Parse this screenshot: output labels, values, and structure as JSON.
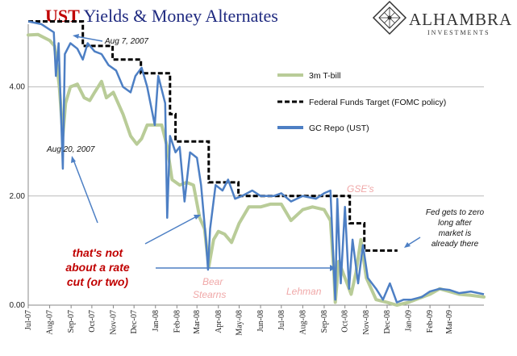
{
  "title": {
    "part1": "UST",
    "part2": " Yields & Money Alternates",
    "part1_color": "#c00000",
    "part2_color": "#1f2a80"
  },
  "logo": {
    "name": "ALHAMBRA",
    "sub": "INVESTMENTS",
    "icon": "alhambra-diamond-logo-icon"
  },
  "colors": {
    "tbill": "#b9cc98",
    "repo": "#4d7fc4",
    "fedfunds": "#000000",
    "arrow": "#4d7fc4",
    "grid": "#bbbbbb"
  },
  "chart_data": {
    "type": "line",
    "ylim": [
      0,
      5.0
    ],
    "yticks": [
      "0.00",
      "2.00",
      "4.00"
    ],
    "ytick_values": [
      0,
      2,
      4
    ],
    "x_range": [
      "2007-07-01",
      "2009-04-20"
    ],
    "xticks": [
      {
        "date": "2007-07-01",
        "label": "Jul-07"
      },
      {
        "date": "2007-08-01",
        "label": "Aug-07"
      },
      {
        "date": "2007-09-01",
        "label": "Sep-07"
      },
      {
        "date": "2007-10-01",
        "label": "Oct-07"
      },
      {
        "date": "2007-11-01",
        "label": "Nov-07"
      },
      {
        "date": "2007-12-01",
        "label": "Dec-07"
      },
      {
        "date": "2008-01-01",
        "label": "Jan-08"
      },
      {
        "date": "2008-02-01",
        "label": "Feb-08"
      },
      {
        "date": "2008-03-01",
        "label": "Mar-08"
      },
      {
        "date": "2008-04-01",
        "label": "Apr-08"
      },
      {
        "date": "2008-05-01",
        "label": "May-08"
      },
      {
        "date": "2008-06-01",
        "label": "Jun-08"
      },
      {
        "date": "2008-07-01",
        "label": "Jul-08"
      },
      {
        "date": "2008-08-01",
        "label": "Aug-08"
      },
      {
        "date": "2008-09-01",
        "label": "Sep-08"
      },
      {
        "date": "2008-10-01",
        "label": "Oct-08"
      },
      {
        "date": "2008-11-01",
        "label": "Nov-08"
      },
      {
        "date": "2008-12-01",
        "label": "Dec-08"
      },
      {
        "date": "2009-01-01",
        "label": "Jan-09"
      },
      {
        "date": "2009-02-01",
        "label": "Feb-09"
      },
      {
        "date": "2009-03-01",
        "label": "Mar-09"
      }
    ],
    "legend": [
      {
        "key": "tbill",
        "label": "3m T-bill"
      },
      {
        "key": "fedfunds",
        "label": "Federal Funds Target (FOMC policy)"
      },
      {
        "key": "repo",
        "label": "GC Repo (UST)"
      }
    ],
    "series": [
      {
        "key": "tbill",
        "name": "3m T-bill",
        "points": [
          [
            "2007-07-01",
            4.95
          ],
          [
            "2007-07-15",
            4.96
          ],
          [
            "2007-08-01",
            4.85
          ],
          [
            "2007-08-08",
            4.75
          ],
          [
            "2007-08-15",
            4.0
          ],
          [
            "2007-08-20",
            3.1
          ],
          [
            "2007-08-24",
            3.7
          ],
          [
            "2007-08-31",
            4.0
          ],
          [
            "2007-09-10",
            4.05
          ],
          [
            "2007-09-20",
            3.8
          ],
          [
            "2007-09-28",
            3.75
          ],
          [
            "2007-10-05",
            3.9
          ],
          [
            "2007-10-15",
            4.1
          ],
          [
            "2007-10-22",
            3.8
          ],
          [
            "2007-11-01",
            3.9
          ],
          [
            "2007-11-15",
            3.5
          ],
          [
            "2007-11-26",
            3.1
          ],
          [
            "2007-12-05",
            2.95
          ],
          [
            "2007-12-12",
            3.05
          ],
          [
            "2007-12-20",
            3.3
          ],
          [
            "2007-12-31",
            3.3
          ],
          [
            "2008-01-10",
            3.3
          ],
          [
            "2008-01-18",
            2.9
          ],
          [
            "2008-01-25",
            2.3
          ],
          [
            "2008-02-05",
            2.2
          ],
          [
            "2008-02-15",
            2.25
          ],
          [
            "2008-02-25",
            2.2
          ],
          [
            "2008-03-05",
            1.6
          ],
          [
            "2008-03-12",
            1.4
          ],
          [
            "2008-03-18",
            0.7
          ],
          [
            "2008-03-25",
            1.2
          ],
          [
            "2008-04-01",
            1.35
          ],
          [
            "2008-04-10",
            1.3
          ],
          [
            "2008-04-20",
            1.15
          ],
          [
            "2008-05-01",
            1.5
          ],
          [
            "2008-05-15",
            1.8
          ],
          [
            "2008-06-01",
            1.8
          ],
          [
            "2008-06-15",
            1.85
          ],
          [
            "2008-07-01",
            1.85
          ],
          [
            "2008-07-15",
            1.55
          ],
          [
            "2008-08-01",
            1.75
          ],
          [
            "2008-08-15",
            1.8
          ],
          [
            "2008-09-01",
            1.75
          ],
          [
            "2008-09-10",
            1.55
          ],
          [
            "2008-09-15",
            0.6
          ],
          [
            "2008-09-17",
            0.05
          ],
          [
            "2008-09-22",
            0.8
          ],
          [
            "2008-10-01",
            0.5
          ],
          [
            "2008-10-10",
            0.2
          ],
          [
            "2008-10-17",
            0.6
          ],
          [
            "2008-10-24",
            1.2
          ],
          [
            "2008-11-01",
            0.5
          ],
          [
            "2008-11-15",
            0.1
          ],
          [
            "2008-12-01",
            0.05
          ],
          [
            "2008-12-15",
            0.0
          ],
          [
            "2009-01-01",
            0.05
          ],
          [
            "2009-01-15",
            0.12
          ],
          [
            "2009-02-01",
            0.2
          ],
          [
            "2009-02-15",
            0.3
          ],
          [
            "2009-03-01",
            0.25
          ],
          [
            "2009-03-15",
            0.2
          ],
          [
            "2009-04-01",
            0.18
          ],
          [
            "2009-04-20",
            0.15
          ]
        ]
      },
      {
        "key": "fedfunds",
        "name": "Federal Funds Target (FOMC policy)",
        "points": [
          [
            "2007-07-01",
            5.25
          ],
          [
            "2007-09-18",
            5.25
          ],
          [
            "2007-09-18",
            4.75
          ],
          [
            "2007-10-31",
            4.75
          ],
          [
            "2007-10-31",
            4.5
          ],
          [
            "2007-12-11",
            4.5
          ],
          [
            "2007-12-11",
            4.25
          ],
          [
            "2008-01-22",
            4.25
          ],
          [
            "2008-01-22",
            3.5
          ],
          [
            "2008-01-30",
            3.5
          ],
          [
            "2008-01-30",
            3.0
          ],
          [
            "2008-03-18",
            3.0
          ],
          [
            "2008-03-18",
            2.25
          ],
          [
            "2008-04-30",
            2.25
          ],
          [
            "2008-04-30",
            2.0
          ],
          [
            "2008-10-08",
            2.0
          ],
          [
            "2008-10-08",
            1.5
          ],
          [
            "2008-10-29",
            1.5
          ],
          [
            "2008-10-29",
            1.0
          ],
          [
            "2008-12-16",
            1.0
          ]
        ]
      },
      {
        "key": "repo",
        "name": "GC Repo (UST)",
        "points": [
          [
            "2007-07-01",
            5.2
          ],
          [
            "2007-07-20",
            5.15
          ],
          [
            "2007-08-07",
            5.0
          ],
          [
            "2007-08-10",
            4.2
          ],
          [
            "2007-08-14",
            4.8
          ],
          [
            "2007-08-20",
            2.5
          ],
          [
            "2007-08-23",
            4.6
          ],
          [
            "2007-08-31",
            4.8
          ],
          [
            "2007-09-10",
            4.7
          ],
          [
            "2007-09-18",
            4.5
          ],
          [
            "2007-09-25",
            4.8
          ],
          [
            "2007-10-05",
            4.65
          ],
          [
            "2007-10-15",
            4.6
          ],
          [
            "2007-10-25",
            4.4
          ],
          [
            "2007-11-05",
            4.3
          ],
          [
            "2007-11-15",
            4.0
          ],
          [
            "2007-11-26",
            3.9
          ],
          [
            "2007-12-03",
            4.2
          ],
          [
            "2007-12-12",
            4.35
          ],
          [
            "2007-12-20",
            4.0
          ],
          [
            "2007-12-31",
            3.3
          ],
          [
            "2008-01-05",
            4.2
          ],
          [
            "2008-01-15",
            3.7
          ],
          [
            "2008-01-18",
            1.6
          ],
          [
            "2008-01-22",
            3.1
          ],
          [
            "2008-01-30",
            2.8
          ],
          [
            "2008-02-05",
            2.9
          ],
          [
            "2008-02-12",
            1.9
          ],
          [
            "2008-02-20",
            2.8
          ],
          [
            "2008-03-01",
            2.7
          ],
          [
            "2008-03-07",
            2.2
          ],
          [
            "2008-03-14",
            1.2
          ],
          [
            "2008-03-17",
            0.65
          ],
          [
            "2008-03-20",
            1.4
          ],
          [
            "2008-03-28",
            2.2
          ],
          [
            "2008-04-07",
            2.1
          ],
          [
            "2008-04-15",
            2.3
          ],
          [
            "2008-04-25",
            1.95
          ],
          [
            "2008-05-05",
            2.0
          ],
          [
            "2008-05-20",
            2.1
          ],
          [
            "2008-06-01",
            2.0
          ],
          [
            "2008-06-20",
            2.0
          ],
          [
            "2008-07-01",
            2.05
          ],
          [
            "2008-07-15",
            1.9
          ],
          [
            "2008-08-01",
            2.0
          ],
          [
            "2008-08-20",
            1.95
          ],
          [
            "2008-09-01",
            2.05
          ],
          [
            "2008-09-10",
            2.1
          ],
          [
            "2008-09-15",
            0.6
          ],
          [
            "2008-09-17",
            0.1
          ],
          [
            "2008-09-20",
            1.95
          ],
          [
            "2008-09-25",
            0.4
          ],
          [
            "2008-10-01",
            1.8
          ],
          [
            "2008-10-07",
            0.3
          ],
          [
            "2008-10-12",
            1.2
          ],
          [
            "2008-10-20",
            0.4
          ],
          [
            "2008-10-27",
            1.1
          ],
          [
            "2008-11-03",
            0.5
          ],
          [
            "2008-11-15",
            0.3
          ],
          [
            "2008-11-25",
            0.1
          ],
          [
            "2008-12-05",
            0.4
          ],
          [
            "2008-12-15",
            0.05
          ],
          [
            "2008-12-25",
            0.1
          ],
          [
            "2009-01-05",
            0.1
          ],
          [
            "2009-01-20",
            0.15
          ],
          [
            "2009-02-01",
            0.25
          ],
          [
            "2009-02-15",
            0.3
          ],
          [
            "2009-03-01",
            0.28
          ],
          [
            "2009-03-15",
            0.22
          ],
          [
            "2009-04-01",
            0.25
          ],
          [
            "2009-04-20",
            0.2
          ]
        ]
      }
    ],
    "annotations": {
      "aug7": "Aug 7, 2007",
      "aug20": "Aug 20, 2007",
      "gse": "GSE's",
      "bear1": "Bear",
      "bear2": "Stearns",
      "lehman": "Lehman",
      "rate1": "that's not",
      "rate2": "about a rate",
      "rate3": "cut (or two)",
      "fed1": "Fed gets to zero",
      "fed2": "long after",
      "fed3": "market is",
      "fed4": "already there"
    }
  }
}
